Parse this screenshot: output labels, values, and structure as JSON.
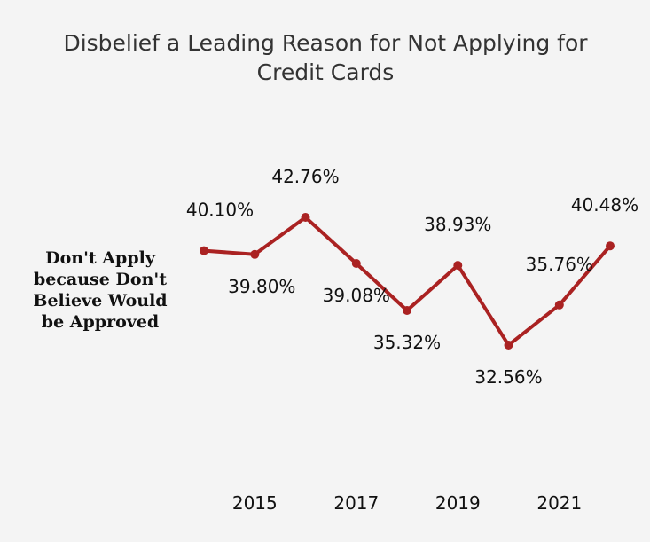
{
  "chart_data": {
    "type": "line",
    "title_lines": [
      "Disbelief a Leading Reason for Not Applying for",
      "Credit Cards"
    ],
    "ylabel_lines": [
      "Don't Apply",
      "because Don't",
      "Believe Would",
      "be Approved"
    ],
    "xlabel": "",
    "x": [
      2014,
      2015,
      2016,
      2017,
      2018,
      2019,
      2020,
      2021,
      2022
    ],
    "values": [
      40.1,
      39.8,
      42.76,
      39.08,
      35.32,
      38.93,
      32.56,
      35.76,
      40.48
    ],
    "data_labels": [
      "40.10%",
      "39.80%",
      "42.76%",
      "39.08%",
      "35.32%",
      "38.93%",
      "32.56%",
      "35.76%",
      "40.48%"
    ],
    "x_ticks": [
      2015,
      2017,
      2019,
      2021
    ],
    "x_tick_labels": [
      "2015",
      "2017",
      "2019",
      "2021"
    ],
    "grid": false,
    "legend": "none",
    "line_color": "#aa2222"
  }
}
